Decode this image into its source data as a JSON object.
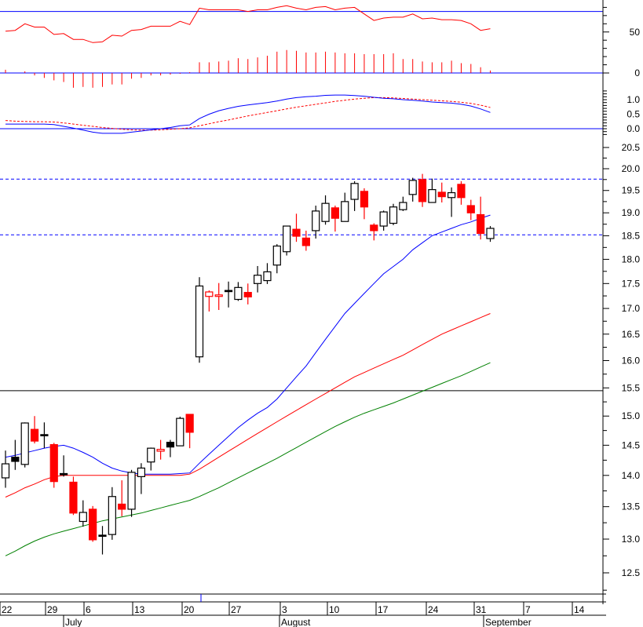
{
  "chart_data": {
    "type": "candlestick",
    "title": "",
    "colors": {
      "up_body": "#ffffff",
      "down_body": "#ff0000",
      "outline": "#000000",
      "ma_fast": "#0000ff",
      "ma_mid": "#ff0000",
      "ma_slow": "#008000",
      "guide": "#0000ff",
      "oscillator": "#ff0000"
    },
    "candles_ohlc_style": [
      [
        13.96,
        14.41,
        13.8,
        14.19,
        "u"
      ],
      [
        14.3,
        14.59,
        14.09,
        14.23,
        "k"
      ],
      [
        14.18,
        14.89,
        14.13,
        14.88,
        "u"
      ],
      [
        14.77,
        15.0,
        14.53,
        14.57,
        "d"
      ],
      [
        14.68,
        14.89,
        14.45,
        14.68,
        "k"
      ],
      [
        14.51,
        14.54,
        13.8,
        13.9,
        "d"
      ],
      [
        14.03,
        14.33,
        13.98,
        14.03,
        "k"
      ],
      [
        13.89,
        13.98,
        13.37,
        13.4,
        "d"
      ],
      [
        13.27,
        13.6,
        13.19,
        13.41,
        "u"
      ],
      [
        13.46,
        13.51,
        12.96,
        12.99,
        "d"
      ],
      [
        13.06,
        13.2,
        12.77,
        13.06,
        "k"
      ],
      [
        13.07,
        13.81,
        12.99,
        13.66,
        "u"
      ],
      [
        13.54,
        13.92,
        13.35,
        13.46,
        "d"
      ],
      [
        13.46,
        14.09,
        13.34,
        14.05,
        "u"
      ],
      [
        13.98,
        14.2,
        13.7,
        14.12,
        "u"
      ],
      [
        14.22,
        14.46,
        14.08,
        14.45,
        "u"
      ],
      [
        14.4,
        14.59,
        14.26,
        14.43,
        "r"
      ],
      [
        14.55,
        14.59,
        14.3,
        14.47,
        "k"
      ],
      [
        14.49,
        14.99,
        14.49,
        14.96,
        "u"
      ],
      [
        15.03,
        15.03,
        14.45,
        14.72,
        "d"
      ],
      [
        16.07,
        17.63,
        15.96,
        17.45,
        "u"
      ],
      [
        17.24,
        17.36,
        16.94,
        17.33,
        "r"
      ],
      [
        17.24,
        17.51,
        16.97,
        17.27,
        "r"
      ],
      [
        17.36,
        17.54,
        17.02,
        17.36,
        "k"
      ],
      [
        17.18,
        17.53,
        17.15,
        17.42,
        "u"
      ],
      [
        17.32,
        17.5,
        17.08,
        17.23,
        "d"
      ],
      [
        17.5,
        17.86,
        17.32,
        17.67,
        "u"
      ],
      [
        17.56,
        17.92,
        17.49,
        17.74,
        "u"
      ],
      [
        17.88,
        18.32,
        17.71,
        18.28,
        "u"
      ],
      [
        18.16,
        18.71,
        18.08,
        18.71,
        "u"
      ],
      [
        18.64,
        18.98,
        18.37,
        18.49,
        "d"
      ],
      [
        18.45,
        18.61,
        18.18,
        18.29,
        "d"
      ],
      [
        18.61,
        19.16,
        18.44,
        19.04,
        "u"
      ],
      [
        18.81,
        19.39,
        18.74,
        19.21,
        "u"
      ],
      [
        19.11,
        19.16,
        18.59,
        18.88,
        "d"
      ],
      [
        18.81,
        19.45,
        18.81,
        19.25,
        "u"
      ],
      [
        19.3,
        19.71,
        19.04,
        19.66,
        "u"
      ],
      [
        19.48,
        19.55,
        18.86,
        19.13,
        "d"
      ],
      [
        18.73,
        18.77,
        18.4,
        18.61,
        "d"
      ],
      [
        18.71,
        19.05,
        18.61,
        19.02,
        "u"
      ],
      [
        18.77,
        19.2,
        18.73,
        19.13,
        "u"
      ],
      [
        19.07,
        19.36,
        19.04,
        19.23,
        "u"
      ],
      [
        19.41,
        19.79,
        19.25,
        19.73,
        "u"
      ],
      [
        19.75,
        19.88,
        19.13,
        19.25,
        "d"
      ],
      [
        19.23,
        19.77,
        19.23,
        19.52,
        "u"
      ],
      [
        19.46,
        19.68,
        19.23,
        19.36,
        "d"
      ],
      [
        19.34,
        19.57,
        18.91,
        19.45,
        "u"
      ],
      [
        19.64,
        19.71,
        19.18,
        19.34,
        "d"
      ],
      [
        19.16,
        19.29,
        18.84,
        19.0,
        "d"
      ],
      [
        18.96,
        19.36,
        18.42,
        18.55,
        "d"
      ],
      [
        18.44,
        18.71,
        18.37,
        18.66,
        "u"
      ]
    ],
    "ma_fast": [
      14.3,
      14.33,
      14.37,
      14.41,
      14.45,
      14.48,
      14.5,
      14.45,
      14.38,
      14.3,
      14.2,
      14.12,
      14.07,
      14.04,
      14.02,
      14.02,
      14.02,
      14.02,
      14.03,
      14.04,
      14.2,
      14.35,
      14.5,
      14.65,
      14.8,
      14.93,
      15.05,
      15.15,
      15.3,
      15.5,
      15.7,
      15.9,
      16.15,
      16.4,
      16.65,
      16.9,
      17.1,
      17.3,
      17.5,
      17.7,
      17.85,
      18.0,
      18.2,
      18.35,
      18.5,
      18.58,
      18.66,
      18.74,
      18.8,
      18.88,
      18.95
    ],
    "ma_mid": [
      13.65,
      13.72,
      13.8,
      13.86,
      13.93,
      13.98,
      14.0,
      14.0,
      14.0,
      14.0,
      14.0,
      14.0,
      14.0,
      14.0,
      14.0,
      14.0,
      14.0,
      14.0,
      14.0,
      14.02,
      14.1,
      14.2,
      14.3,
      14.4,
      14.5,
      14.6,
      14.7,
      14.8,
      14.9,
      15.0,
      15.1,
      15.2,
      15.3,
      15.4,
      15.5,
      15.6,
      15.7,
      15.78,
      15.86,
      15.94,
      16.02,
      16.1,
      16.2,
      16.3,
      16.4,
      16.5,
      16.58,
      16.66,
      16.74,
      16.82,
      16.9
    ],
    "ma_slow": [
      12.75,
      12.82,
      12.9,
      12.97,
      13.03,
      13.08,
      13.12,
      13.16,
      13.2,
      13.24,
      13.28,
      13.31,
      13.34,
      13.37,
      13.4,
      13.44,
      13.48,
      13.52,
      13.56,
      13.6,
      13.66,
      13.73,
      13.8,
      13.88,
      13.96,
      14.04,
      14.12,
      14.2,
      14.28,
      14.37,
      14.46,
      14.55,
      14.64,
      14.73,
      14.82,
      14.9,
      14.98,
      15.05,
      15.11,
      15.17,
      15.23,
      15.3,
      15.37,
      15.44,
      15.51,
      15.58,
      15.65,
      15.72,
      15.8,
      15.88,
      15.96
    ],
    "price_hlines": {
      "dashed": [
        19.76,
        18.52
      ],
      "solid": [
        15.45
      ]
    },
    "price_ylim": [
      12.2,
      20.8
    ],
    "price_scale": "log",
    "price_ticks": [
      "20.5",
      "20.0",
      "19.5",
      "19.0",
      "18.5",
      "18.0",
      "17.5",
      "17.0",
      "16.5",
      "16.0",
      "15.5",
      "15.0",
      "14.5",
      "14.0",
      "13.5",
      "13.0",
      "12.5"
    ],
    "oscillator": {
      "line": [
        51,
        52,
        60,
        56,
        56,
        47,
        48,
        41,
        41,
        37,
        38,
        46,
        45,
        52,
        53,
        57,
        57,
        57,
        63,
        59,
        79,
        77,
        77,
        77,
        77,
        75,
        77,
        77,
        80,
        82,
        79,
        77,
        80,
        81,
        77,
        79,
        80,
        72,
        64,
        67,
        68,
        68,
        72,
        66,
        67,
        65,
        65,
        64,
        60,
        52,
        54
      ],
      "histogram": [
        4,
        0,
        2,
        -3,
        -6,
        -9,
        -11,
        -18,
        -17,
        -18,
        -17,
        -14,
        -14,
        -7,
        -6,
        -3,
        -3,
        -2,
        -1,
        1,
        13,
        13,
        14,
        15,
        18,
        17,
        19,
        21,
        26,
        28,
        27,
        25,
        25,
        26,
        25,
        24,
        24,
        23,
        23,
        23,
        24,
        17,
        17,
        14,
        13,
        13,
        15,
        12,
        11,
        7,
        3
      ],
      "hline": 75,
      "ticks": [
        "50",
        "0"
      ]
    },
    "macd": {
      "macd": [
        0.16,
        0.16,
        0.16,
        0.16,
        0.16,
        0.14,
        0.08,
        0.02,
        -0.05,
        -0.12,
        -0.16,
        -0.16,
        -0.16,
        -0.12,
        -0.08,
        -0.04,
        0,
        0.04,
        0.1,
        0.13,
        0.35,
        0.5,
        0.62,
        0.7,
        0.77,
        0.82,
        0.86,
        0.9,
        0.95,
        1.02,
        1.07,
        1.1,
        1.12,
        1.15,
        1.16,
        1.16,
        1.14,
        1.12,
        1.08,
        1.05,
        1.03,
        1.0,
        0.98,
        0.95,
        0.92,
        0.9,
        0.88,
        0.84,
        0.78,
        0.68,
        0.56
      ],
      "signal": [
        0.28,
        0.26,
        0.25,
        0.24,
        0.24,
        0.23,
        0.2,
        0.16,
        0.12,
        0.08,
        0.04,
        0.01,
        -0.02,
        -0.04,
        -0.05,
        -0.05,
        -0.04,
        -0.02,
        0,
        0.03,
        0.1,
        0.17,
        0.24,
        0.3,
        0.37,
        0.44,
        0.5,
        0.56,
        0.62,
        0.68,
        0.74,
        0.79,
        0.84,
        0.89,
        0.94,
        0.98,
        1.02,
        1.05,
        1.07,
        1.07,
        1.06,
        1.04,
        1.02,
        1.0,
        0.98,
        0.96,
        0.94,
        0.91,
        0.87,
        0.81,
        0.73
      ],
      "ticks": [
        "1.0",
        "0.5",
        "0.0"
      ]
    },
    "x_day_labels": [
      "22",
      "29",
      "6",
      "13",
      "20",
      "27",
      "3",
      "10",
      "17",
      "24",
      "31",
      "7",
      "14"
    ],
    "x_month_labels": [
      "July",
      "August",
      "September"
    ]
  }
}
